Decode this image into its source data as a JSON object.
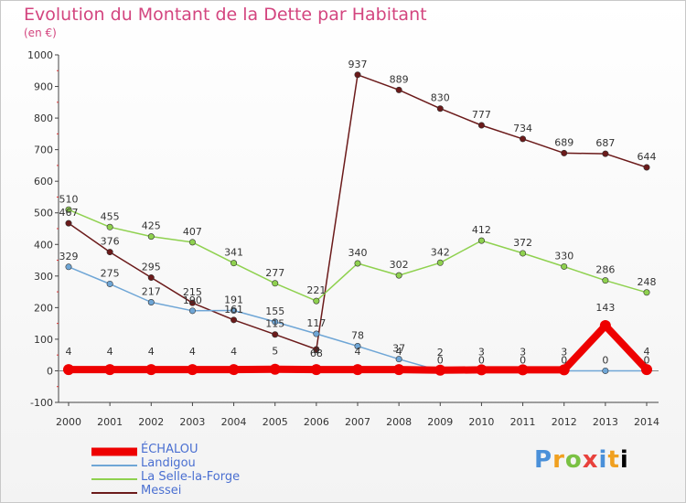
{
  "chart_data": {
    "type": "line",
    "title": "Evolution du Montant de la Dette par Habitant",
    "subtitle": "(en €)",
    "x": [
      "2000",
      "2001",
      "2002",
      "2003",
      "2004",
      "2005",
      "2006",
      "2007",
      "2008",
      "2009",
      "2010",
      "2011",
      "2012",
      "2013",
      "2014"
    ],
    "ylim": [
      -100,
      1000
    ],
    "yticks": [
      "-100",
      "0",
      "100",
      "200",
      "300",
      "400",
      "500",
      "600",
      "700",
      "800",
      "900",
      "1000"
    ],
    "grid": false,
    "legend_position": "bottom-left",
    "series": [
      {
        "name": "Messei",
        "color": "#6b1a1a",
        "values": [
          467,
          376,
          295,
          215,
          161,
          115,
          68,
          937,
          889,
          830,
          777,
          734,
          689,
          687,
          644
        ],
        "labels": [
          "467",
          "376",
          "295",
          "215",
          "161",
          "115",
          "68",
          "937",
          "889",
          "830",
          "777",
          "734",
          "689",
          "687",
          "644"
        ]
      },
      {
        "name": "La Selle-la-Forge",
        "color": "#8fd14f",
        "values": [
          510,
          455,
          425,
          407,
          341,
          277,
          221,
          340,
          302,
          342,
          412,
          372,
          330,
          286,
          248
        ],
        "labels": [
          "510",
          "455",
          "425",
          "407",
          "341",
          "277",
          "221",
          "340",
          "302",
          "342",
          "412",
          "372",
          "330",
          "286",
          "248"
        ]
      },
      {
        "name": "Landigou",
        "color": "#6fa6d6",
        "values": [
          329,
          275,
          217,
          190,
          191,
          155,
          117,
          78,
          37,
          0,
          0,
          0,
          0,
          0,
          0
        ],
        "labels": [
          "329",
          "275",
          "217",
          "190",
          "191",
          "155",
          "117",
          "78",
          "37",
          "0",
          "0",
          "0",
          "0",
          "0",
          "0"
        ]
      },
      {
        "name": "ÉCHALOU",
        "color": "#ee0000",
        "values": [
          4,
          4,
          4,
          4,
          4,
          5,
          4,
          4,
          4,
          2,
          3,
          3,
          3,
          143,
          4
        ],
        "labels": [
          "4",
          "4",
          "4",
          "4",
          "4",
          "5",
          "4",
          "4",
          "4",
          "2",
          "3",
          "3",
          "3",
          "143",
          "4"
        ]
      }
    ]
  },
  "legend": [
    {
      "label": "ÉCHALOU",
      "color": "#ee0000",
      "thickness": 9
    },
    {
      "label": "Landigou",
      "color": "#6fa6d6",
      "thickness": 2
    },
    {
      "label": "La Selle-la-Forge",
      "color": "#8fd14f",
      "thickness": 2
    },
    {
      "label": "Messei",
      "color": "#6b1a1a",
      "thickness": 2
    }
  ],
  "logo": {
    "text": [
      "P",
      "r",
      "o",
      "x",
      "i",
      "t",
      "i"
    ]
  }
}
